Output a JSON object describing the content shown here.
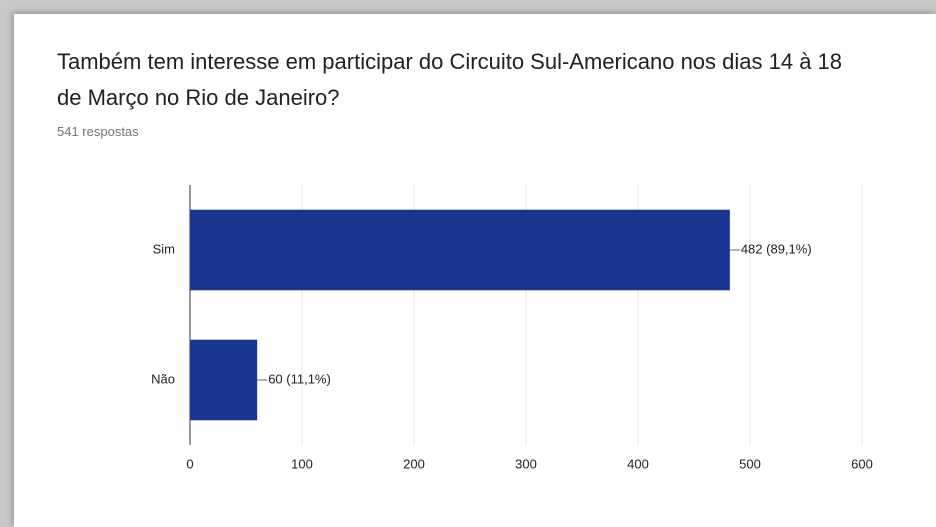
{
  "chart_data": {
    "type": "bar",
    "orientation": "horizontal",
    "title": "Também tem interesse em participar do Circuito Sul-Americano nos dias 14 à 18 de Março no Rio de Janeiro?",
    "subtitle": "541 respostas",
    "categories": [
      "Sim",
      "Não"
    ],
    "values": [
      482,
      60
    ],
    "value_labels": [
      "482 (89,1%)",
      "60 (11,1%)"
    ],
    "color": "#1a3491",
    "xlim": [
      0,
      600
    ],
    "xticks": [
      0,
      100,
      200,
      300,
      400,
      500,
      600
    ],
    "grid": true
  }
}
